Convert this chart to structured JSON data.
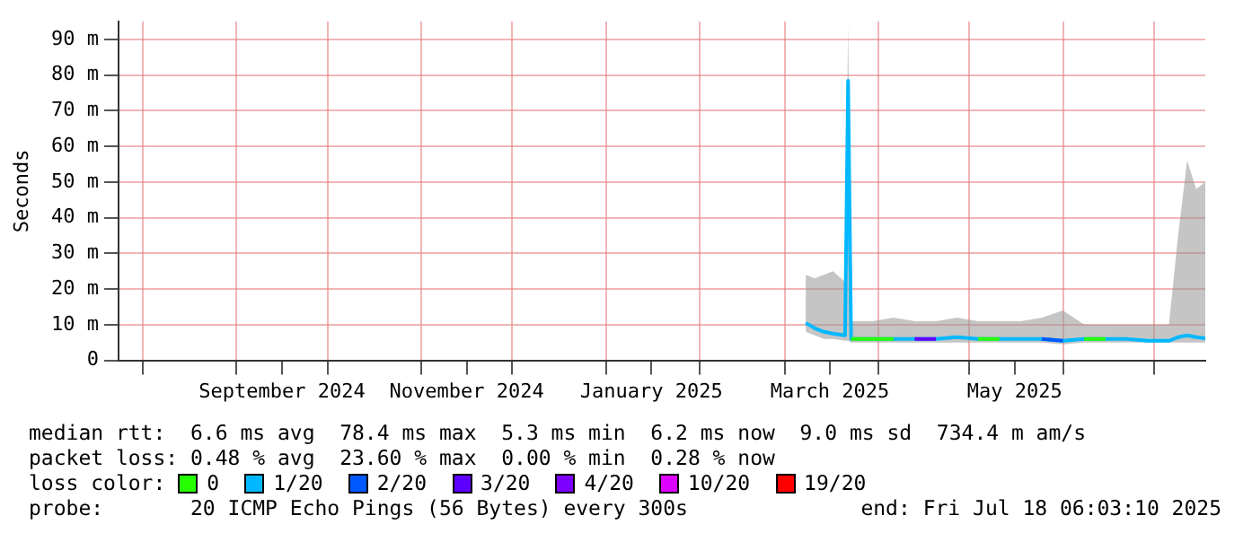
{
  "chart_data": {
    "type": "line",
    "ylabel": "Seconds",
    "x": [
      "2025-03-08",
      "2025-03-11",
      "2025-03-14",
      "2025-03-17",
      "2025-03-21",
      "2025-03-22",
      "2025-03-23",
      "2025-03-30",
      "2025-04-06",
      "2025-04-13",
      "2025-04-20",
      "2025-04-27",
      "2025-05-04",
      "2025-05-11",
      "2025-05-18",
      "2025-05-25",
      "2025-06-01",
      "2025-06-08",
      "2025-06-15",
      "2025-06-22",
      "2025-06-29",
      "2025-07-06",
      "2025-07-09",
      "2025-07-12",
      "2025-07-15",
      "2025-07-18"
    ],
    "series": [
      {
        "name": "0",
        "color": "#26ff00",
        "values": [
          null,
          null,
          null,
          null,
          null,
          null,
          6,
          6,
          6,
          null,
          null,
          null,
          6,
          6,
          null,
          null,
          null,
          6,
          6,
          null,
          null,
          null,
          null,
          null,
          null,
          null
        ]
      },
      {
        "name": "1/20",
        "color": "#00b8ff",
        "values": [
          10.5,
          9,
          8,
          7.5,
          7,
          78.4,
          6,
          6,
          6,
          6,
          6,
          6.5,
          6,
          6,
          6,
          6,
          5.5,
          6,
          6,
          6,
          5.5,
          5.5,
          6.5,
          7,
          6.5,
          6.2
        ],
        "lower": [
          8,
          7,
          6,
          6,
          5.5,
          5.5,
          5,
          5,
          5,
          5,
          5,
          5,
          5,
          5,
          5,
          5,
          4.5,
          5,
          5,
          5,
          5,
          5,
          5,
          5,
          5,
          5
        ],
        "upper": [
          24,
          23,
          24,
          25,
          22,
          94,
          11,
          11,
          12,
          11,
          11,
          12,
          11,
          11,
          11,
          12,
          14,
          10,
          10,
          10,
          10,
          10,
          35,
          56,
          48,
          50
        ]
      },
      {
        "name": "2/20",
        "color": "#0059ff",
        "values": [
          null,
          null,
          null,
          null,
          null,
          null,
          null,
          null,
          null,
          null,
          null,
          null,
          null,
          null,
          null,
          6,
          5.5,
          null,
          null,
          null,
          null,
          null,
          null,
          null,
          null,
          null
        ]
      },
      {
        "name": "3/20",
        "color": "#5e00ff",
        "values": [
          null,
          null,
          null,
          null,
          null,
          null,
          null,
          null,
          null,
          6,
          6,
          null,
          null,
          null,
          null,
          null,
          null,
          null,
          null,
          null,
          null,
          null,
          null,
          null,
          null,
          null
        ]
      },
      {
        "name": "4/20",
        "color": "#7e00ff",
        "values": [
          null,
          null,
          null,
          null,
          null,
          null,
          null,
          null,
          null,
          null,
          null,
          null,
          null,
          null,
          null,
          null,
          null,
          null,
          null,
          null,
          null,
          null,
          null,
          null,
          null,
          null
        ]
      },
      {
        "name": "10/20",
        "color": "#dd00ff",
        "values": [
          null,
          null,
          null,
          null,
          null,
          null,
          null,
          null,
          null,
          null,
          null,
          null,
          null,
          null,
          null,
          null,
          null,
          null,
          null,
          null,
          null,
          null,
          null,
          null,
          null,
          null
        ]
      },
      {
        "name": "19/20",
        "color": "#ff0000",
        "values": [
          null,
          null,
          null,
          null,
          null,
          null,
          null,
          null,
          null,
          null,
          null,
          null,
          null,
          null,
          null,
          null,
          null,
          null,
          null,
          null,
          null,
          null,
          null,
          null,
          null,
          null
        ]
      }
    ],
    "xlim": [
      "2024-07-24",
      "2025-07-18"
    ],
    "xticks": [
      {
        "value": "2024-08-01",
        "label": null
      },
      {
        "value": "2024-09-01",
        "label": null
      },
      {
        "value": "2024-09-16",
        "label": "September 2024"
      },
      {
        "value": "2024-10-01",
        "label": null
      },
      {
        "value": "2024-11-01",
        "label": null
      },
      {
        "value": "2024-11-16",
        "label": "November 2024"
      },
      {
        "value": "2024-12-01",
        "label": null
      },
      {
        "value": "2025-01-01",
        "label": null
      },
      {
        "value": "2025-01-16",
        "label": "January 2025"
      },
      {
        "value": "2025-02-01",
        "label": null
      },
      {
        "value": "2025-03-01",
        "label": null
      },
      {
        "value": "2025-03-16",
        "label": "March 2025"
      },
      {
        "value": "2025-04-01",
        "label": null
      },
      {
        "value": "2025-05-01",
        "label": null
      },
      {
        "value": "2025-05-16",
        "label": "May 2025"
      },
      {
        "value": "2025-06-01",
        "label": null
      },
      {
        "value": "2025-07-01",
        "label": null
      }
    ],
    "ylim": [
      0,
      95
    ],
    "yticks": [
      0,
      {
        "value": 10,
        "label": "10 m"
      },
      {
        "value": 20,
        "label": "20 m"
      },
      {
        "value": 30,
        "label": "30 m"
      },
      {
        "value": 40,
        "label": "40 m"
      },
      {
        "value": 50,
        "label": "50 m"
      },
      {
        "value": 60,
        "label": "60 m"
      },
      {
        "value": 70,
        "label": "70 m"
      },
      {
        "value": 80,
        "label": "80 m"
      },
      {
        "value": 90,
        "label": "90 m"
      }
    ],
    "grid": true,
    "legend": "bottom",
    "legend_title": "loss color:",
    "marker": "none",
    "line_style": "solid",
    "annotations": [
      "median rtt:  6.6 ms avg  78.4 ms max  5.3 ms min  6.2 ms now  9.0 ms sd  734.4 m am/s",
      "packet loss: 0.48 % avg  23.60 % max  0.00 % min  0.28 % now",
      "probe:       20 ICMP Echo Pings (56 Bytes) every 300s",
      "end: Fri Jul 18 06:03:10 2025"
    ]
  }
}
